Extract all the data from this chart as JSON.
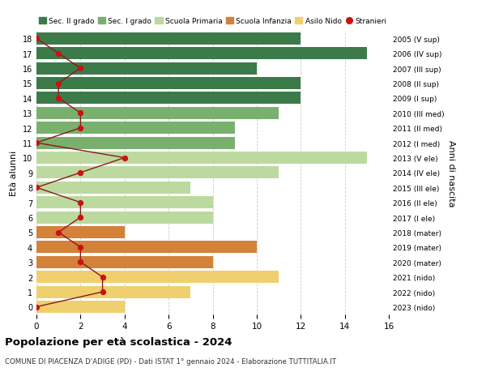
{
  "ages": [
    18,
    17,
    16,
    15,
    14,
    13,
    12,
    11,
    10,
    9,
    8,
    7,
    6,
    5,
    4,
    3,
    2,
    1,
    0
  ],
  "years": [
    "2005 (V sup)",
    "2006 (IV sup)",
    "2007 (III sup)",
    "2008 (II sup)",
    "2009 (I sup)",
    "2010 (III med)",
    "2011 (II med)",
    "2012 (I med)",
    "2013 (V ele)",
    "2014 (IV ele)",
    "2015 (III ele)",
    "2016 (II ele)",
    "2017 (I ele)",
    "2018 (mater)",
    "2019 (mater)",
    "2020 (mater)",
    "2021 (nido)",
    "2022 (nido)",
    "2023 (nido)"
  ],
  "bar_values": [
    12,
    15,
    10,
    12,
    12,
    11,
    9,
    9,
    15,
    11,
    7,
    8,
    8,
    4,
    10,
    8,
    11,
    7,
    4
  ],
  "bar_colors": [
    "#3d7a4a",
    "#3d7a4a",
    "#3d7a4a",
    "#3d7a4a",
    "#3d7a4a",
    "#7ab06e",
    "#7ab06e",
    "#7ab06e",
    "#bcd9a0",
    "#bcd9a0",
    "#bcd9a0",
    "#bcd9a0",
    "#bcd9a0",
    "#d4813a",
    "#d4813a",
    "#d4813a",
    "#f0cf6e",
    "#f0cf6e",
    "#f0cf6e"
  ],
  "stranieri_values": [
    0,
    1,
    2,
    1,
    1,
    2,
    2,
    0,
    4,
    2,
    0,
    2,
    2,
    1,
    2,
    2,
    3,
    3,
    0
  ],
  "legend_labels": [
    "Sec. II grado",
    "Sec. I grado",
    "Scuola Primaria",
    "Scuola Infanzia",
    "Asilo Nido",
    "Stranieri"
  ],
  "legend_colors": [
    "#3d7a4a",
    "#7ab06e",
    "#bcd9a0",
    "#d4813a",
    "#f0cf6e",
    "#cc1111"
  ],
  "ylabel": "Età alunni",
  "ylabel_right": "Anni di nascita",
  "title": "Popolazione per età scolastica - 2024",
  "subtitle": "COMUNE DI PIACENZA D'ADIGE (PD) - Dati ISTAT 1° gennaio 2024 - Elaborazione TUTTITALIA.IT",
  "xlim": [
    0,
    16
  ],
  "background_color": "#ffffff",
  "grid_color": "#cccccc",
  "stranieri_dot_color": "#cc1111",
  "stranieri_line_color": "#8b1a1a",
  "bar_height": 0.82
}
